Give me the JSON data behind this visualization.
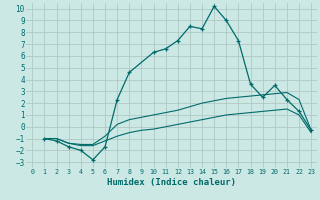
{
  "xlabel": "Humidex (Indice chaleur)",
  "bg_color": "#cce8e4",
  "grid_color": "#b0c8c4",
  "line_color": "#006b6b",
  "xlim": [
    -0.5,
    23.5
  ],
  "ylim": [
    -3.5,
    10.5
  ],
  "line1_x": [
    1,
    2,
    3,
    4,
    5,
    6,
    7,
    8,
    10,
    11,
    12,
    13,
    14,
    15,
    16,
    17,
    18,
    19,
    20,
    21,
    22,
    23
  ],
  "line1_y": [
    -1.0,
    -1.2,
    -1.7,
    -2.0,
    -2.8,
    -1.7,
    2.3,
    4.6,
    6.3,
    6.6,
    7.3,
    8.5,
    8.3,
    10.2,
    9.0,
    7.3,
    3.6,
    2.5,
    3.5,
    2.3,
    1.3,
    -0.3
  ],
  "line2_x": [
    1,
    2,
    3,
    4,
    5,
    6,
    7,
    8,
    9,
    10,
    11,
    12,
    13,
    14,
    15,
    16,
    17,
    18,
    19,
    20,
    21,
    22,
    23
  ],
  "line2_y": [
    -1.0,
    -1.0,
    -1.4,
    -1.5,
    -1.5,
    -0.8,
    0.2,
    0.6,
    0.8,
    1.0,
    1.2,
    1.4,
    1.7,
    2.0,
    2.2,
    2.4,
    2.5,
    2.6,
    2.7,
    2.8,
    2.9,
    2.3,
    -0.3
  ],
  "line3_x": [
    1,
    2,
    3,
    4,
    5,
    6,
    7,
    8,
    9,
    10,
    11,
    12,
    13,
    14,
    15,
    16,
    17,
    18,
    19,
    20,
    21,
    22,
    23
  ],
  "line3_y": [
    -1.0,
    -1.0,
    -1.4,
    -1.6,
    -1.6,
    -1.2,
    -0.8,
    -0.5,
    -0.3,
    -0.2,
    0.0,
    0.2,
    0.4,
    0.6,
    0.8,
    1.0,
    1.1,
    1.2,
    1.3,
    1.4,
    1.5,
    1.0,
    -0.5
  ],
  "xticks": [
    0,
    1,
    2,
    3,
    4,
    5,
    6,
    7,
    8,
    9,
    10,
    11,
    12,
    13,
    14,
    15,
    16,
    17,
    18,
    19,
    20,
    21,
    22,
    23
  ],
  "yticks": [
    -3,
    -2,
    -1,
    0,
    1,
    2,
    3,
    4,
    5,
    6,
    7,
    8,
    9,
    10
  ]
}
